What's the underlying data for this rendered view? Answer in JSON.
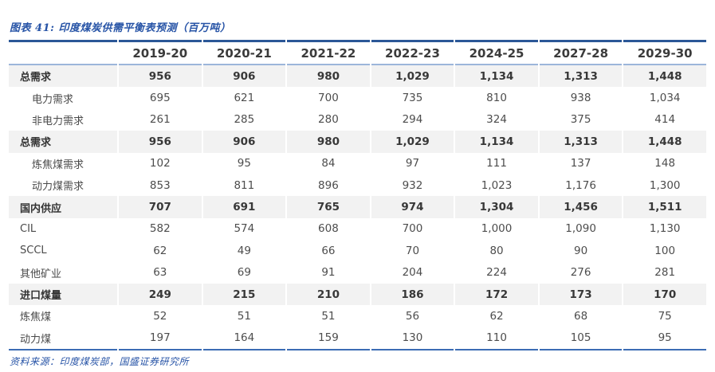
{
  "figure": {
    "title": "图表 41:  印度煤炭供需平衡表预测（百万吨）",
    "source": "资料来源：印度煤炭部，国盛证券研究所"
  },
  "colors": {
    "accent_blue": "#2653A6",
    "rule_dark": "#2B5797",
    "rule_light": "#9CB6DA",
    "rule_bottom": "#3C6CB4",
    "row_shade": "#F2F2F2"
  },
  "chart_data": {
    "type": "table",
    "title": "印度煤炭供需平衡表预测（百万吨）",
    "columns": [
      "2019-20",
      "2020-21",
      "2021-22",
      "2022-23",
      "2024-25",
      "2027-28",
      "2029-30"
    ],
    "rows": [
      {
        "label": "总需求",
        "style": "section",
        "values": [
          "956",
          "906",
          "980",
          "1,029",
          "1,134",
          "1,313",
          "1,448"
        ]
      },
      {
        "label": "电力需求",
        "style": "sub",
        "values": [
          "695",
          "621",
          "700",
          "735",
          "810",
          "938",
          "1,034"
        ]
      },
      {
        "label": "非电力需求",
        "style": "sub",
        "values": [
          "261",
          "285",
          "280",
          "294",
          "324",
          "375",
          "414"
        ]
      },
      {
        "label": "总需求",
        "style": "section",
        "values": [
          "956",
          "906",
          "980",
          "1,029",
          "1,134",
          "1,313",
          "1,448"
        ]
      },
      {
        "label": "炼焦煤需求",
        "style": "sub",
        "values": [
          "102",
          "95",
          "84",
          "97",
          "111",
          "137",
          "148"
        ]
      },
      {
        "label": "动力煤需求",
        "style": "sub",
        "values": [
          "853",
          "811",
          "896",
          "932",
          "1,023",
          "1,176",
          "1,300"
        ]
      },
      {
        "label": "国内供应",
        "style": "section",
        "values": [
          "707",
          "691",
          "765",
          "974",
          "1,304",
          "1,456",
          "1,511"
        ]
      },
      {
        "label": "CIL",
        "style": "plain",
        "values": [
          "582",
          "574",
          "608",
          "700",
          "1,000",
          "1,090",
          "1,130"
        ]
      },
      {
        "label": "SCCL",
        "style": "plain",
        "values": [
          "62",
          "49",
          "66",
          "70",
          "80",
          "90",
          "100"
        ]
      },
      {
        "label": "其他矿业",
        "style": "plain",
        "values": [
          "63",
          "69",
          "91",
          "204",
          "224",
          "276",
          "281"
        ]
      },
      {
        "label": "进口煤量",
        "style": "section",
        "values": [
          "249",
          "215",
          "210",
          "186",
          "172",
          "173",
          "170"
        ]
      },
      {
        "label": "炼焦煤",
        "style": "plain",
        "values": [
          "52",
          "51",
          "51",
          "56",
          "62",
          "68",
          "75"
        ]
      },
      {
        "label": "动力煤",
        "style": "plain",
        "values": [
          "197",
          "164",
          "159",
          "130",
          "110",
          "105",
          "95"
        ]
      }
    ]
  }
}
